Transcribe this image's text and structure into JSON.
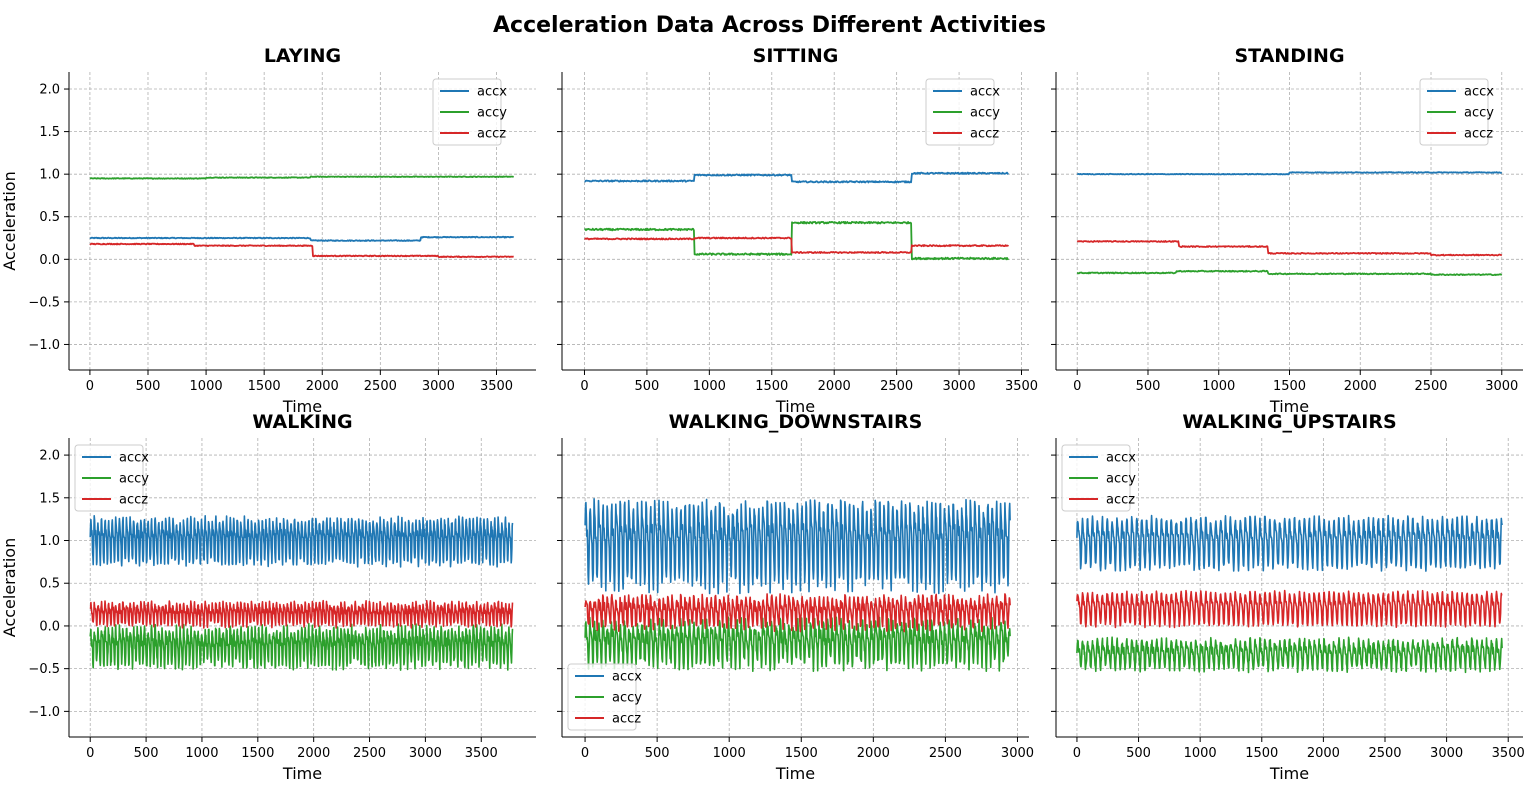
{
  "colors": {
    "accx": "#1f77b4",
    "accy": "#2ca02c",
    "accz": "#d62728"
  },
  "chart_data": {
    "title": "Acceleration Data Across Different Activities",
    "shared_ylim": [
      -1.3,
      2.2
    ],
    "yticks": [
      "2.0",
      "1.5",
      "1.0",
      "0.5",
      "0.0",
      "−0.5",
      "−1.0"
    ],
    "ytick_values": [
      2.0,
      1.5,
      1.0,
      0.5,
      0.0,
      -0.5,
      -1.0
    ],
    "grid": true,
    "panels": [
      {
        "type": "line",
        "title": "LAYING",
        "xlabel": "Time",
        "ylabel": "Acceleration",
        "xlim": [
          -180,
          3840
        ],
        "xticks": [
          "0",
          "500",
          "1000",
          "1500",
          "2000",
          "2500",
          "3000",
          "3500"
        ],
        "xtick_values": [
          0,
          500,
          1000,
          1500,
          2000,
          2500,
          3000,
          3500
        ],
        "n_samples": 3650,
        "legend": "top-right",
        "series": [
          {
            "name": "accx",
            "kind": "steps",
            "steps": [
              [
                0,
                0.25
              ],
              [
                1900,
                0.22
              ],
              [
                2850,
                0.26
              ]
            ],
            "noise": 0.005
          },
          {
            "name": "accy",
            "kind": "steps",
            "steps": [
              [
                0,
                0.95
              ],
              [
                1000,
                0.96
              ],
              [
                1900,
                0.97
              ],
              [
                3000,
                0.97
              ]
            ],
            "noise": 0.004
          },
          {
            "name": "accz",
            "kind": "steps",
            "steps": [
              [
                0,
                0.18
              ],
              [
                900,
                0.16
              ],
              [
                1920,
                0.04
              ],
              [
                3000,
                0.03
              ]
            ],
            "noise": 0.005
          }
        ]
      },
      {
        "type": "line",
        "title": "SITTING",
        "xlabel": "Time",
        "ylabel": "",
        "xlim": [
          -180,
          3560
        ],
        "xticks": [
          "0",
          "500",
          "1000",
          "1500",
          "2000",
          "2500",
          "3000",
          "3500"
        ],
        "xtick_values": [
          0,
          500,
          1000,
          1500,
          2000,
          2500,
          3000,
          3500
        ],
        "n_samples": 3400,
        "legend": "top-right",
        "series": [
          {
            "name": "accx",
            "kind": "steps",
            "steps": [
              [
                0,
                0.92
              ],
              [
                880,
                0.99
              ],
              [
                1660,
                0.91
              ],
              [
                2620,
                1.01
              ]
            ],
            "noise": 0.008
          },
          {
            "name": "accy",
            "kind": "steps",
            "steps": [
              [
                0,
                0.35
              ],
              [
                880,
                0.06
              ],
              [
                1660,
                0.43
              ],
              [
                2620,
                0.01
              ]
            ],
            "noise": 0.01
          },
          {
            "name": "accz",
            "kind": "steps",
            "steps": [
              [
                0,
                0.24
              ],
              [
                880,
                0.25
              ],
              [
                1660,
                0.08
              ],
              [
                2620,
                0.16
              ]
            ],
            "noise": 0.007
          }
        ]
      },
      {
        "type": "line",
        "title": "STANDING",
        "xlabel": "Time",
        "ylabel": "",
        "xlim": [
          -150,
          3150
        ],
        "xticks": [
          "0",
          "500",
          "1000",
          "1500",
          "2000",
          "2500",
          "3000"
        ],
        "xtick_values": [
          0,
          500,
          1000,
          1500,
          2000,
          2500,
          3000
        ],
        "n_samples": 3000,
        "legend": "top-right",
        "series": [
          {
            "name": "accx",
            "kind": "steps",
            "steps": [
              [
                0,
                1.0
              ],
              [
                1500,
                1.02
              ],
              [
                3000,
                1.02
              ]
            ],
            "noise": 0.004
          },
          {
            "name": "accy",
            "kind": "steps",
            "steps": [
              [
                0,
                -0.16
              ],
              [
                700,
                -0.14
              ],
              [
                1350,
                -0.17
              ],
              [
                2500,
                -0.18
              ]
            ],
            "noise": 0.006
          },
          {
            "name": "accz",
            "kind": "steps",
            "steps": [
              [
                0,
                0.21
              ],
              [
                720,
                0.15
              ],
              [
                1350,
                0.07
              ],
              [
                2500,
                0.05
              ]
            ],
            "noise": 0.006
          }
        ]
      },
      {
        "type": "line",
        "title": "WALKING",
        "xlabel": "Time",
        "ylabel": "Acceleration",
        "xlim": [
          -190,
          3990
        ],
        "xticks": [
          "0",
          "500",
          "1000",
          "1500",
          "2000",
          "2500",
          "3000",
          "3500"
        ],
        "xtick_values": [
          0,
          500,
          1000,
          1500,
          2000,
          2500,
          3000,
          3500
        ],
        "n_samples": 3780,
        "legend": "top-left",
        "series": [
          {
            "name": "accx",
            "kind": "osc",
            "mean": 1.02,
            "amp": 0.27,
            "period": 32,
            "noise": 0.05
          },
          {
            "name": "accy",
            "kind": "osc",
            "mean": -0.22,
            "amp": 0.22,
            "period": 32,
            "noise": 0.07
          },
          {
            "name": "accz",
            "kind": "osc",
            "mean": 0.15,
            "amp": 0.13,
            "period": 32,
            "noise": 0.04
          }
        ]
      },
      {
        "type": "line",
        "title": "WALKING_DOWNSTAIRS",
        "xlabel": "Time",
        "ylabel": "",
        "xlim": [
          -160,
          3080
        ],
        "xticks": [
          "0",
          "500",
          "1000",
          "1500",
          "2000",
          "2500",
          "3000"
        ],
        "xtick_values": [
          0,
          500,
          1000,
          1500,
          2000,
          2500,
          3000
        ],
        "n_samples": 2950,
        "legend": "bottom-left",
        "series": [
          {
            "name": "accx",
            "kind": "osc",
            "mean": 1.0,
            "amp": 0.5,
            "period": 30,
            "noise": 0.1
          },
          {
            "name": "accy",
            "kind": "osc",
            "mean": -0.18,
            "amp": 0.25,
            "period": 30,
            "noise": 0.09
          },
          {
            "name": "accz",
            "kind": "osc",
            "mean": 0.18,
            "amp": 0.18,
            "period": 30,
            "noise": 0.06
          }
        ]
      },
      {
        "type": "line",
        "title": "WALKING_UPSTAIRS",
        "xlabel": "Time",
        "ylabel": "",
        "xlim": [
          -170,
          3620
        ],
        "xticks": [
          "0",
          "500",
          "1000",
          "1500",
          "2000",
          "2500",
          "3000",
          "3500"
        ],
        "xtick_values": [
          0,
          500,
          1000,
          1500,
          2000,
          2500,
          3000,
          3500
        ],
        "n_samples": 3450,
        "legend": "top-left",
        "series": [
          {
            "name": "accx",
            "kind": "osc",
            "mean": 1.0,
            "amp": 0.3,
            "period": 40,
            "noise": 0.05
          },
          {
            "name": "accy",
            "kind": "osc",
            "mean": -0.32,
            "amp": 0.17,
            "period": 40,
            "noise": 0.05
          },
          {
            "name": "accz",
            "kind": "osc",
            "mean": 0.22,
            "amp": 0.2,
            "period": 40,
            "noise": 0.03
          }
        ]
      }
    ]
  }
}
